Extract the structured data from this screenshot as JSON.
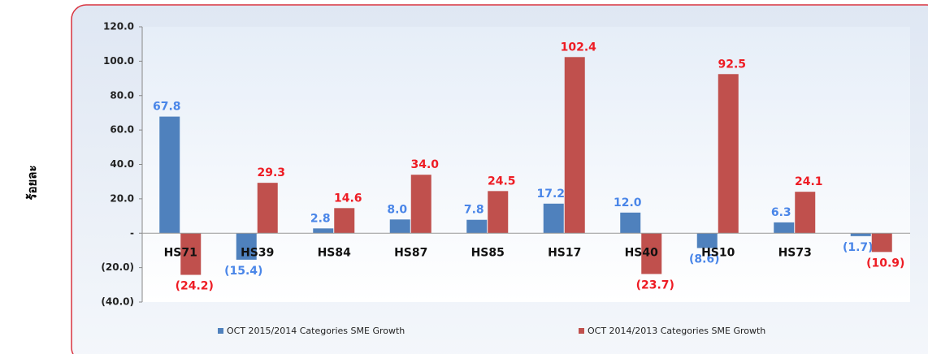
{
  "chart_data": {
    "type": "bar",
    "y_label": "ร้อยละ",
    "categories": [
      "HS71",
      "HS39",
      "HS84",
      "HS87",
      "HS85",
      "HS17",
      "HS40",
      "HS10",
      "HS73",
      null
    ],
    "series": [
      {
        "name": "OCT 2015/2014 Categories SME Growth",
        "color": "#4f81bd",
        "values": [
          67.8,
          -15.4,
          2.8,
          8.0,
          7.8,
          17.2,
          12.0,
          -8.6,
          6.3,
          -1.7
        ],
        "value_labels": [
          "67.8",
          "(15.4)",
          "2.8",
          "8.0",
          "7.8",
          "17.2",
          "12.0",
          "(8.6)",
          "6.3",
          "(1.7)"
        ],
        "label_color": "#4a86e8"
      },
      {
        "name": "OCT 2014/2013 Categories SME  Growth",
        "color": "#c0504d",
        "values": [
          -24.2,
          29.3,
          14.6,
          34.0,
          24.5,
          102.4,
          -23.7,
          92.5,
          24.1,
          -10.9
        ],
        "value_labels": [
          "(24.2)",
          "29.3",
          "14.6",
          "34.0",
          "24.5",
          "102.4",
          "(23.7)",
          "92.5",
          "24.1",
          "(10.9)"
        ],
        "label_color": "#ee1c24"
      }
    ],
    "ylim": [
      -40,
      120
    ],
    "yticks": [
      {
        "value": -40,
        "label": "(40.0)"
      },
      {
        "value": -20,
        "label": "(20.0)"
      },
      {
        "value": 0,
        "label": "-"
      },
      {
        "value": 20,
        "label": "20.0"
      },
      {
        "value": 40,
        "label": "40.0"
      },
      {
        "value": 60,
        "label": "60.0"
      },
      {
        "value": 80,
        "label": "80.0"
      },
      {
        "value": 100,
        "label": "100.0"
      },
      {
        "value": 120,
        "label": "120.0"
      }
    ],
    "legend": "bottom"
  }
}
